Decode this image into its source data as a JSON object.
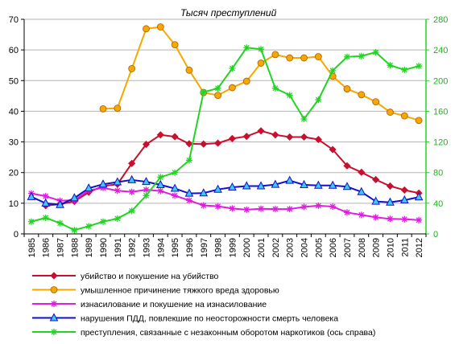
{
  "chart_data": {
    "type": "line",
    "title": "Тысяч преступлений",
    "categories": [
      "1985",
      "1986",
      "1987",
      "1988",
      "1989",
      "1990",
      "1991",
      "1992",
      "1993",
      "1994",
      "1995",
      "1996",
      "1997",
      "1998",
      "1999",
      "2000",
      "2001",
      "2002",
      "2003",
      "2004",
      "2005",
      "2006",
      "2007",
      "2008",
      "2009",
      "2010",
      "2011",
      "2012"
    ],
    "ylim_left": [
      0,
      70
    ],
    "yticks_left": [
      0,
      10,
      20,
      30,
      40,
      50,
      60,
      70
    ],
    "ylim_right": [
      0,
      280
    ],
    "yticks_right": [
      0,
      40,
      80,
      120,
      160,
      200,
      240,
      280
    ],
    "grid": true,
    "legend_position": "bottom",
    "series": [
      {
        "name": "убийство и покушение на убийство",
        "axis": "left",
        "color": "#c8102e",
        "marker": "diamond",
        "values": [
          null,
          9.2,
          9.7,
          10.6,
          13.6,
          15.6,
          16.2,
          23.0,
          29.2,
          32.3,
          31.7,
          29.4,
          29.3,
          29.6,
          31.1,
          31.8,
          33.6,
          32.3,
          31.6,
          31.6,
          30.8,
          27.5,
          22.2,
          20.1,
          17.7,
          15.6,
          14.3,
          13.3
        ]
      },
      {
        "name": "умышленное причинение тяжкого вреда здоровью",
        "axis": "left",
        "color": "#f5a800",
        "marker": "circle",
        "values": [
          null,
          null,
          null,
          null,
          null,
          40.8,
          41.0,
          53.9,
          66.9,
          67.5,
          61.7,
          53.4,
          46.1,
          45.2,
          47.7,
          49.8,
          55.7,
          58.5,
          57.4,
          57.4,
          57.8,
          51.4,
          47.3,
          45.4,
          43.1,
          39.7,
          38.5,
          37.0
        ]
      },
      {
        "name": "изнасилование и покушение на изнасилование",
        "axis": "left",
        "color": "#e01ce0",
        "marker": "star",
        "values": [
          13.2,
          12.3,
          10.8,
          11.0,
          14.2,
          15.0,
          14.1,
          13.7,
          14.4,
          14.0,
          12.5,
          10.9,
          9.3,
          9.0,
          8.3,
          7.9,
          8.2,
          8.1,
          8.1,
          8.8,
          9.2,
          8.9,
          7.0,
          6.2,
          5.4,
          4.9,
          4.8,
          4.5
        ]
      },
      {
        "name": "нарушения ПДД, повлекшие по неосторожности смерть человека",
        "axis": "left",
        "color": "#1010cc",
        "marker": "triangle",
        "values": [
          12.1,
          10.0,
          9.5,
          11.7,
          14.9,
          16.2,
          16.9,
          17.6,
          17.0,
          16.0,
          14.8,
          13.2,
          13.3,
          14.5,
          15.2,
          15.6,
          15.6,
          16.1,
          17.4,
          16.0,
          15.8,
          15.8,
          15.4,
          13.7,
          10.6,
          10.3,
          11.0,
          12.0
        ]
      },
      {
        "name": "преступления, связанные с незаконным оборотом наркотиков (ось справа)",
        "axis": "right",
        "color": "#22d422",
        "marker": "star",
        "values": [
          16,
          21,
          14,
          5,
          10,
          16,
          20,
          30,
          50,
          74,
          80,
          96,
          185,
          190,
          216,
          243,
          241,
          190,
          181,
          150,
          175,
          213,
          231,
          232,
          237,
          220,
          214,
          219
        ]
      }
    ]
  }
}
